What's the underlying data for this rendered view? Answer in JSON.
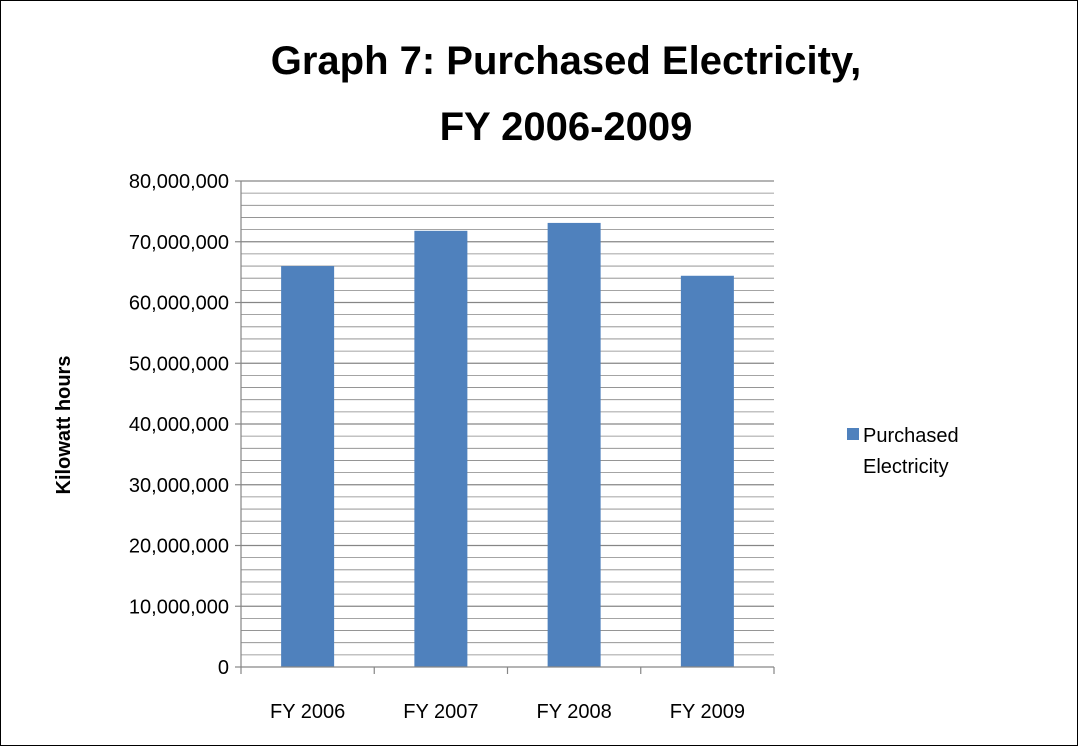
{
  "chart_data": {
    "type": "bar",
    "title": "Graph 7: Purchased Electricity,",
    "subtitle": "FY 2006-2009",
    "xlabel": "",
    "ylabel": "Kilowatt hours",
    "categories": [
      "FY 2006",
      "FY 2007",
      "FY 2008",
      "FY 2009"
    ],
    "series": [
      {
        "name": "Purchased Electricity",
        "values": [
          66000000,
          71800000,
          73100000,
          64400000
        ]
      }
    ],
    "ylim": [
      0,
      80000000
    ],
    "yticks": [
      "0",
      "10,000,000",
      "20,000,000",
      "30,000,000",
      "40,000,000",
      "50,000,000",
      "60,000,000",
      "70,000,000",
      "80,000,000"
    ],
    "grid": true,
    "legend_position": "right",
    "legend_lines": [
      "Purchased",
      "Electricity"
    ],
    "colors": {
      "bar": "#4F81BD",
      "grid": "#868686",
      "axis": "#868686"
    }
  }
}
